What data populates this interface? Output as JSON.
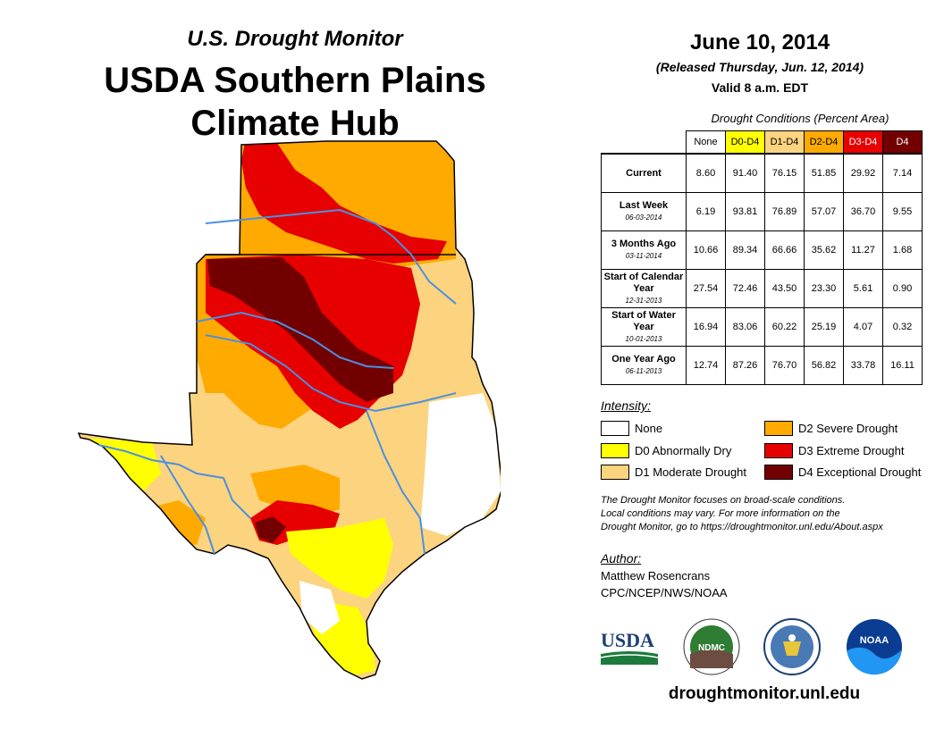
{
  "header": {
    "subtitle": "U.S. Drought Monitor",
    "title_line1": "USDA Southern Plains",
    "title_line2": "Climate Hub"
  },
  "report": {
    "date": "June 10, 2014",
    "released": "(Released Thursday, Jun. 12, 2014)",
    "valid": "Valid 8 a.m. EDT"
  },
  "conditions_table": {
    "caption": "Drought Conditions (Percent Area)",
    "columns": [
      "None",
      "D0-D4",
      "D1-D4",
      "D2-D4",
      "D3-D4",
      "D4"
    ],
    "column_colors": [
      "#ffffff",
      "#ffff00",
      "#fcd37f",
      "#ffaa00",
      "#e60000",
      "#730000"
    ],
    "rows": [
      {
        "label": "Current",
        "date": "",
        "values": [
          "8.60",
          "91.40",
          "76.15",
          "51.85",
          "29.92",
          "7.14"
        ]
      },
      {
        "label": "Last Week",
        "date": "06-03-2014",
        "values": [
          "6.19",
          "93.81",
          "76.89",
          "57.07",
          "36.70",
          "9.55"
        ]
      },
      {
        "label": "3 Months Ago",
        "date": "03-11-2014",
        "values": [
          "10.66",
          "89.34",
          "66.66",
          "35.62",
          "11.27",
          "1.68"
        ]
      },
      {
        "label": "Start of Calendar Year",
        "date": "12-31-2013",
        "values": [
          "27.54",
          "72.46",
          "43.50",
          "23.30",
          "5.61",
          "0.90"
        ]
      },
      {
        "label": "Start of Water Year",
        "date": "10-01-2013",
        "values": [
          "16.94",
          "83.06",
          "60.22",
          "25.19",
          "4.07",
          "0.32"
        ]
      },
      {
        "label": "One Year Ago",
        "date": "06-11-2013",
        "values": [
          "12.74",
          "87.26",
          "76.70",
          "56.82",
          "33.78",
          "16.11"
        ]
      }
    ]
  },
  "legend": {
    "title": "Intensity:",
    "items": [
      {
        "label": "None",
        "color": "#ffffff"
      },
      {
        "label": "D0 Abnormally Dry",
        "color": "#ffff00"
      },
      {
        "label": "D1 Moderate Drought",
        "color": "#fcd37f"
      },
      {
        "label": "D2 Severe Drought",
        "color": "#ffaa00"
      },
      {
        "label": "D3 Extreme Drought",
        "color": "#e60000"
      },
      {
        "label": "D4 Exceptional Drought",
        "color": "#730000"
      }
    ]
  },
  "note": {
    "line1": "The Drought Monitor focuses on broad-scale conditions.",
    "line2": "Local conditions may vary. For more information on the",
    "line3": "Drought Monitor, go to https://droughtmonitor.unl.edu/About.aspx"
  },
  "author": {
    "title": "Author:",
    "name": "Matthew Rosencrans",
    "org": "CPC/NCEP/NWS/NOAA"
  },
  "logos": {
    "usda": "USDA",
    "ndmc": "NDMC",
    "doc": "",
    "noaa": "NOAA"
  },
  "website": "droughtmonitor.unl.edu"
}
